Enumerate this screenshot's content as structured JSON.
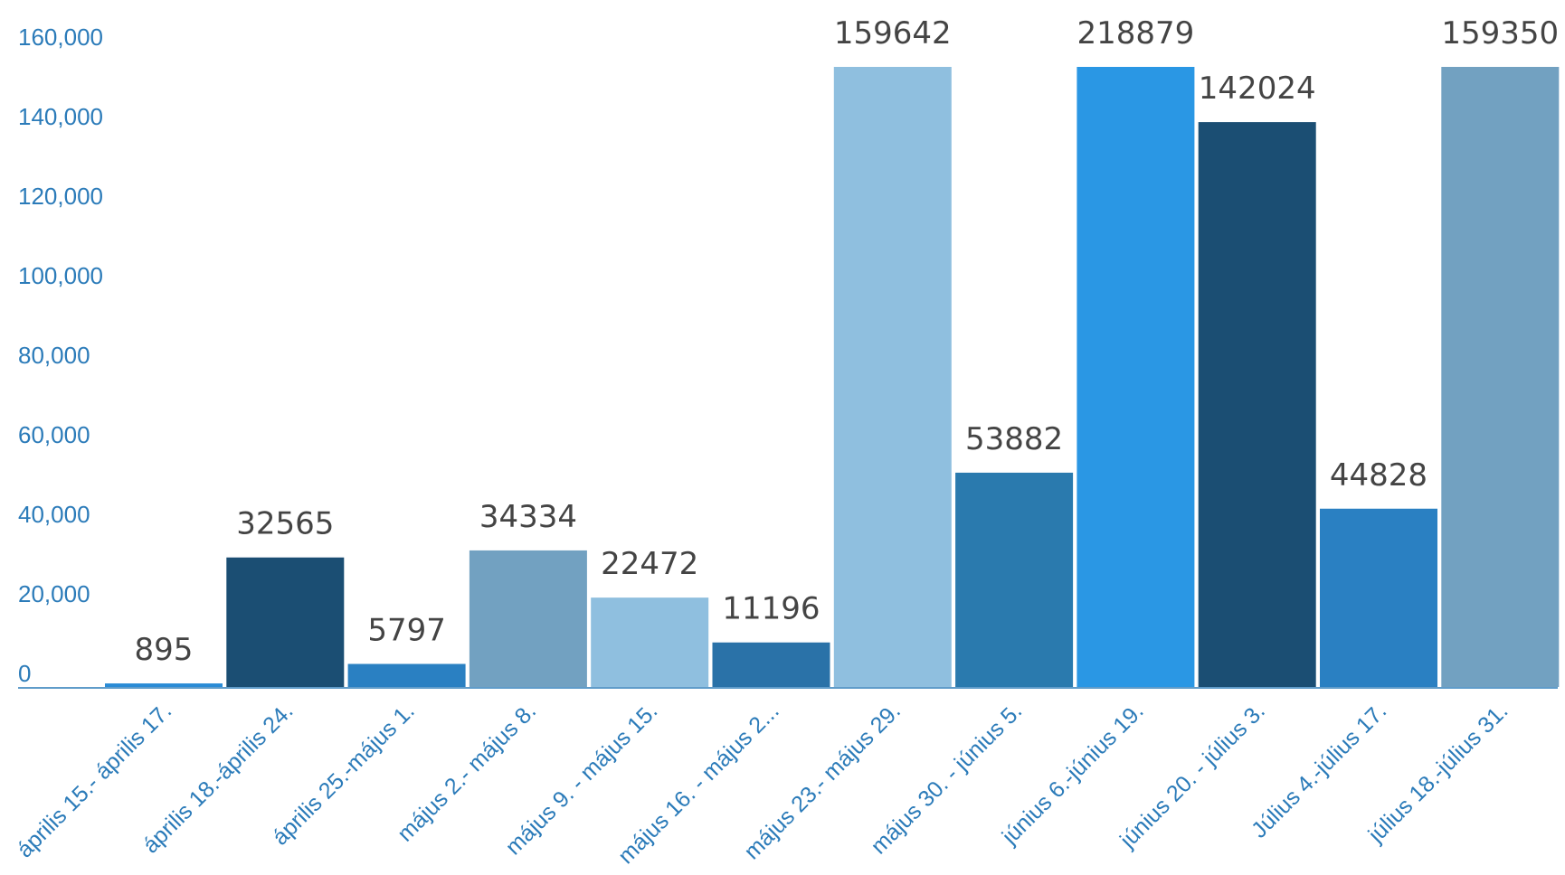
{
  "chart_data": {
    "type": "bar",
    "categories": [
      "április 15.- április 17.",
      "április 18.-április 24.",
      "április 25.-május 1.",
      "május 2.- május 8.",
      "május 9. - május 15.",
      "május 16. - május 2...",
      "május 23.- május 29.",
      "május 30. - június 5.",
      "június 6.-június 19.",
      "június 20. - július 3.",
      "Július 4.-július 17.",
      "július 18.-július 31."
    ],
    "values": [
      895,
      32565,
      5797,
      34334,
      22472,
      11196,
      159642,
      53882,
      218879,
      142024,
      44828,
      159350
    ],
    "data_labels": [
      "895",
      "32565",
      "5797",
      "34334",
      "22472",
      "11196",
      "159642",
      "53882",
      "218879",
      "142024",
      "44828",
      "159350"
    ],
    "bar_colors": [
      "#2a8bd6",
      "#1b4e73",
      "#2a80c2",
      "#72a1c1",
      "#8fbfdf",
      "#2a72a8",
      "#8fbfdf",
      "#2a7aae",
      "#2a97e4",
      "#1b4e73",
      "#2a80c2",
      "#72a1c1"
    ],
    "yticks": [
      0,
      20000,
      40000,
      60000,
      80000,
      100000,
      120000,
      140000,
      160000
    ],
    "ytick_labels": [
      "0",
      "20,000",
      "40,000",
      "60,000",
      "80,000",
      "100,000",
      "120,000",
      "140,000",
      "160,000"
    ],
    "ylim": [
      0,
      160000
    ],
    "title": "",
    "xlabel": "",
    "ylabel": "",
    "grid": false,
    "colors": {
      "axis_text": "#2b7bb9",
      "data_label": "#444444",
      "axis_line": "#2b7bb9"
    }
  }
}
